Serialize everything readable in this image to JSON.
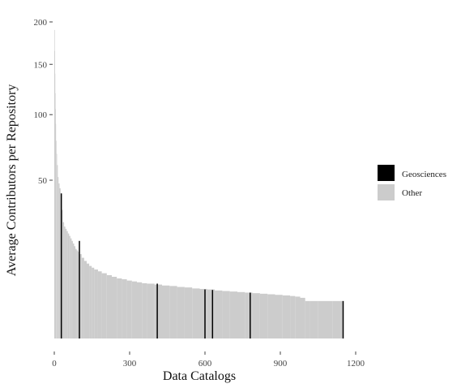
{
  "chart_data": {
    "type": "bar",
    "xlabel": "Data Catalogs",
    "ylabel": "Average Contributors per Repository",
    "x_range": [
      0,
      1200
    ],
    "x_ticks": [
      0,
      300,
      600,
      900,
      1200
    ],
    "y_scale": "sqrt",
    "y_range": [
      0,
      200
    ],
    "y_ticks": [
      50,
      100,
      150,
      200
    ],
    "grid": false,
    "legend_position": "right",
    "legend": [
      {
        "label": "Geosciences",
        "color": "#000000"
      },
      {
        "label": "Other",
        "color": "#cccccc"
      }
    ],
    "series": [
      {
        "name": "Other",
        "color": "#cccccc",
        "x": [
          1,
          2,
          3,
          4,
          5,
          6,
          8,
          10,
          12,
          15,
          18,
          22,
          26,
          30,
          35,
          40,
          45,
          50,
          55,
          60,
          65,
          70,
          75,
          80,
          85,
          90,
          95,
          100,
          110,
          120,
          130,
          140,
          150,
          160,
          175,
          190,
          210,
          230,
          250,
          270,
          290,
          310,
          330,
          350,
          370,
          400,
          430,
          460,
          490,
          520,
          550,
          580,
          610,
          640,
          670,
          700,
          730,
          760,
          790,
          820,
          850,
          880,
          910,
          940,
          960,
          980,
          1000,
          1020,
          1050,
          1080,
          1110,
          1140
        ],
        "values": [
          190,
          165,
          140,
          120,
          105,
          92,
          78,
          68,
          60,
          52,
          48,
          45,
          42,
          33,
          27,
          25,
          24,
          23,
          22,
          21,
          20,
          19,
          18,
          17,
          16,
          15.5,
          15,
          14.2,
          13,
          12,
          11.2,
          10.5,
          10,
          9.5,
          9,
          8.5,
          8,
          7.6,
          7.2,
          7,
          6.7,
          6.5,
          6.3,
          6.1,
          6,
          5.8,
          5.6,
          5.5,
          5.3,
          5.2,
          5,
          4.9,
          4.8,
          4.6,
          4.5,
          4.4,
          4.3,
          4.2,
          4.1,
          4,
          3.9,
          3.8,
          3.7,
          3.6,
          3.5,
          3.3,
          2.8,
          2.8,
          2.8,
          2.8,
          2.8,
          2.8
        ]
      },
      {
        "name": "Geosciences",
        "color": "#000000",
        "x": [
          28,
          100,
          410,
          600,
          630,
          780,
          1150
        ],
        "values": [
          42,
          19,
          6,
          4.8,
          4.7,
          4.2,
          2.8
        ]
      }
    ]
  }
}
